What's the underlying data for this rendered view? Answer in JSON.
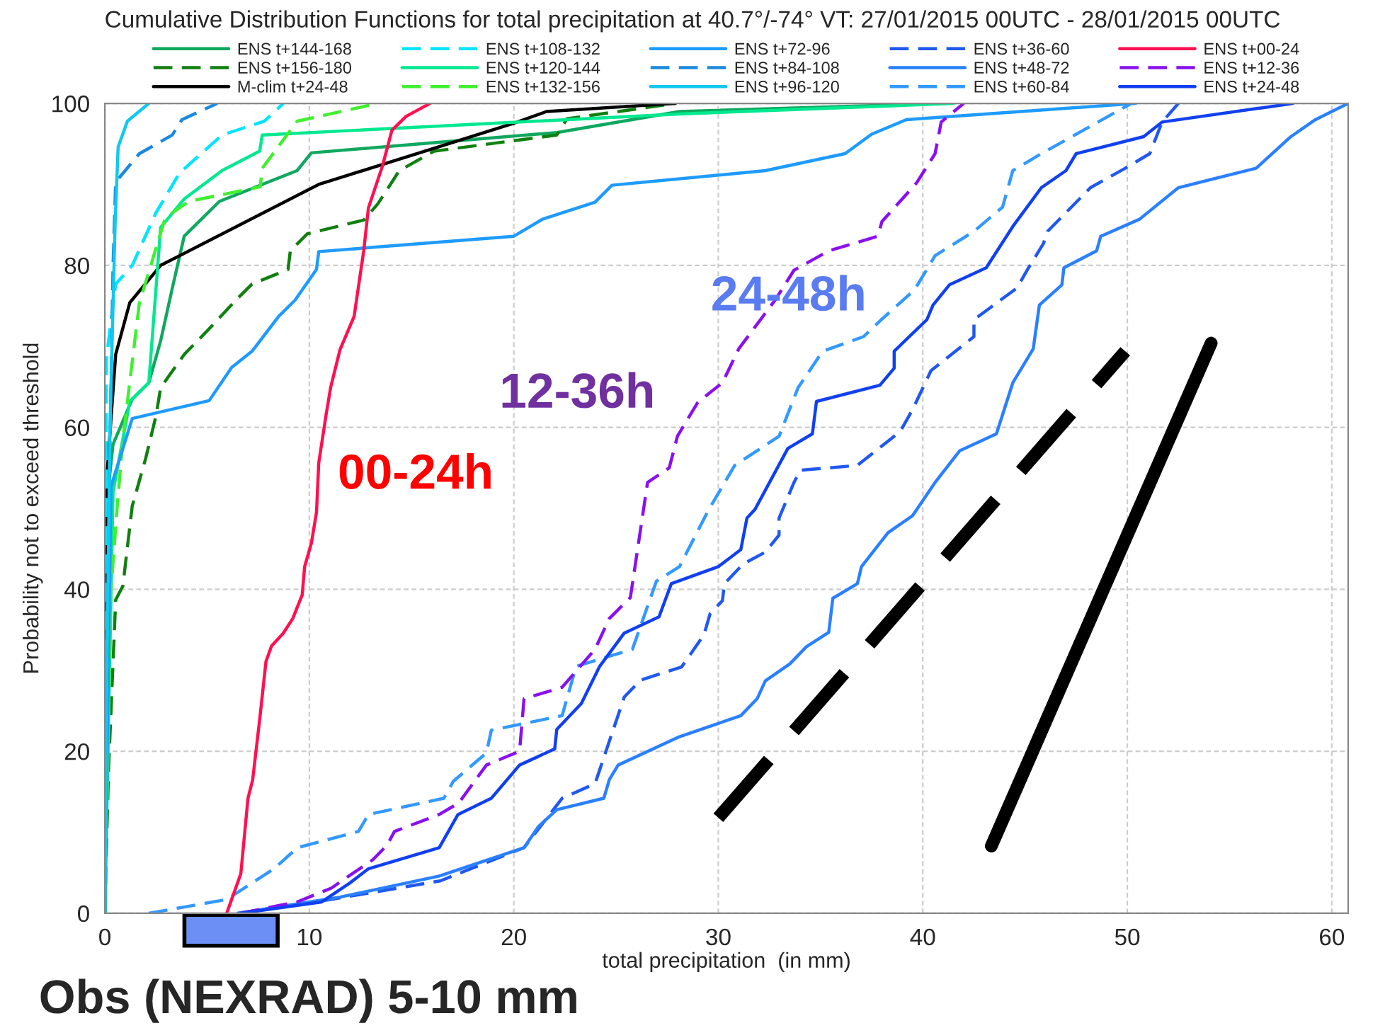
{
  "chart_data": {
    "type": "line",
    "title": "Cumulative Distribution Functions for total precipitation at 40.7°/-74° VT: 27/01/2015 00UTC - 28/01/2015 00UTC",
    "xlabel": "total precipitation  (in mm)",
    "ylabel": "Probability not to exceed threshold",
    "xlim": [
      0,
      60.8
    ],
    "ylim": [
      0,
      100
    ],
    "xticks": [
      0,
      10,
      20,
      30,
      40,
      50,
      60
    ],
    "yticks": [
      0,
      20,
      40,
      60,
      80,
      100
    ],
    "grid": true,
    "legend": "top",
    "marker": "none",
    "series": [
      {
        "name": "ENS t+144-168",
        "color": "#10a860",
        "line_style": "solid",
        "x": [
          0,
          0.07,
          0.4,
          1.34,
          2.15,
          2.73,
          3.3,
          3.88,
          5.6,
          9.4,
          10.1,
          22.1,
          28.1,
          41.0
        ],
        "values": [
          0,
          50.2,
          57.9,
          63.5,
          65.5,
          70.7,
          77.2,
          83.6,
          87.9,
          91.7,
          93.9,
          96.4,
          99,
          100
        ]
      },
      {
        "name": "ENS t+156-180",
        "color": "#108010",
        "line_style": "dashed",
        "x": [
          0,
          0.18,
          0.53,
          0.88,
          1.34,
          2.0,
          2.5,
          2.73,
          3.88,
          5.0,
          6.4,
          7.2,
          8.96,
          9.07,
          9.9,
          12.66,
          13.35,
          14.4,
          16.1,
          22.1,
          22.6,
          27.9
        ],
        "values": [
          0,
          17.7,
          38.7,
          40.4,
          50.3,
          56.2,
          61.4,
          64.9,
          69,
          71.9,
          75.7,
          77.7,
          79.5,
          81.8,
          83.9,
          85.6,
          87.6,
          91.7,
          94.1,
          96.1,
          98.1,
          100
        ]
      },
      {
        "name": "M-clim t+24-48",
        "color": "#000000",
        "line_style": "solid",
        "x": [
          0,
          0.05,
          0.1,
          0.53,
          1.22,
          2.73,
          10.46,
          20.05,
          21.6,
          27.9
        ],
        "values": [
          0,
          45,
          54,
          69,
          75.4,
          80,
          90,
          97.6,
          99,
          100
        ]
      },
      {
        "name": "ENS t+108-132",
        "color": "#00e5ff",
        "line_style": "dashed",
        "x": [
          0,
          0.05,
          0.07,
          0.53,
          1.34,
          2.5,
          3.65,
          5.73,
          7.8,
          8.73
        ],
        "values": [
          0,
          40,
          68.4,
          77.7,
          80,
          86.5,
          91.4,
          96.1,
          97.8,
          100
        ]
      },
      {
        "name": "ENS t+120-144",
        "color": "#00e890",
        "line_style": "solid",
        "x": [
          0,
          0.4,
          1.22,
          2.15,
          2.73,
          3.88,
          5.73,
          7.57,
          7.7,
          28.1,
          41.5
        ],
        "values": [
          0,
          52,
          63.2,
          65.5,
          84.7,
          88.2,
          91.7,
          94.1,
          96.1,
          98.7,
          100
        ]
      },
      {
        "name": "ENS t+132-156",
        "color": "#40f030",
        "line_style": "dashed",
        "x": [
          0,
          0.3,
          0.6,
          0.88,
          1.69,
          2.96,
          4.1,
          7.6,
          7.7,
          9.4,
          13.35
        ],
        "values": [
          0,
          40,
          50,
          58.5,
          75.4,
          85.9,
          87.9,
          89.7,
          92,
          97.8,
          100
        ]
      },
      {
        "name": "ENS t+72-96",
        "color": "#1e9bff",
        "line_style": "solid",
        "x": [
          0,
          0.3,
          1.34,
          5.1,
          6.2,
          7.2,
          8.5,
          9.3,
          10.35,
          10.46,
          20.0,
          21.4,
          23.97,
          24.8,
          32.3,
          36.2,
          37.5,
          39.2,
          50.4
        ],
        "values": [
          0,
          52.7,
          61.1,
          63.3,
          67.4,
          69.4,
          73.7,
          75.7,
          79.5,
          81.7,
          83.6,
          85.7,
          87.8,
          89.9,
          91.7,
          93.8,
          96.2,
          98,
          100
        ]
      },
      {
        "name": "ENS t+84-108",
        "color": "#1a8ae0",
        "line_style": "dashed",
        "x": [
          0,
          0.2,
          0.4,
          0.53,
          1.69,
          3.3,
          3.77,
          5.5
        ],
        "values": [
          0,
          50,
          80,
          90.3,
          93.8,
          96.1,
          98,
          100
        ]
      },
      {
        "name": "ENS t+96-120",
        "color": "#10c8f0",
        "line_style": "solid",
        "x": [
          0,
          0.1,
          0.25,
          0.5,
          0.65,
          1.1,
          2.15
        ],
        "values": [
          0,
          30,
          60,
          85,
          94.6,
          97.8,
          100
        ]
      },
      {
        "name": "ENS t+36-60",
        "color": "#2058f0",
        "line_style": "dashed",
        "x": [
          6.5,
          11.04,
          16.4,
          20.5,
          22.36,
          23.97,
          25.4,
          26.2,
          28.2,
          29.3,
          29.6,
          30.2,
          30.3,
          31.2,
          32.3,
          32.97,
          32.97,
          33.7,
          34.0,
          36.8,
          38.9,
          39.5,
          40.4,
          42.5,
          42.5,
          44.6,
          45.1,
          45.9,
          46.1,
          48.2,
          49.9,
          51.1,
          51.7,
          52.5
        ],
        "values": [
          0,
          1.7,
          4.0,
          8.1,
          14.2,
          16,
          26.7,
          28.8,
          30.4,
          34.4,
          37,
          38.6,
          40.7,
          43.1,
          44.6,
          46.7,
          48.8,
          53.2,
          54.7,
          55.3,
          59.5,
          62.2,
          67,
          71.2,
          73.3,
          77.2,
          79.4,
          82.7,
          84.2,
          89.6,
          92,
          93.8,
          97.7,
          100
        ]
      },
      {
        "name": "ENS t+48-72",
        "color": "#2a80ff",
        "line_style": "solid",
        "x": [
          6.5,
          11.5,
          16.35,
          20.5,
          21.2,
          22.1,
          24.4,
          24.67,
          25.1,
          28.1,
          31.1,
          31.9,
          32.3,
          33.5,
          34.3,
          35.4,
          35.6,
          36.8,
          37.0,
          38.3,
          39.5,
          40.6,
          41.8,
          43.6,
          44.4,
          45.4,
          45.7,
          46.8,
          46.9,
          48.5,
          48.7,
          50.6,
          52.5,
          56.3,
          58.0,
          59.2,
          60.8
        ],
        "values": [
          0,
          2.0,
          4.6,
          8.1,
          10.7,
          12.8,
          14.2,
          16.5,
          18.3,
          21.8,
          24.4,
          26.5,
          28.7,
          30.8,
          32.9,
          34.7,
          38.9,
          40.7,
          42.8,
          47,
          49.1,
          53.2,
          57.1,
          59.2,
          65.5,
          69.7,
          75.1,
          77.6,
          79.7,
          81.8,
          83.6,
          85.7,
          89.6,
          92,
          95.9,
          98,
          100
        ]
      },
      {
        "name": "ENS t+60-84",
        "color": "#3399ff",
        "line_style": "dashed",
        "x": [
          2.15,
          5.96,
          8.27,
          9.42,
          12.4,
          12.89,
          16.58,
          17.04,
          18.66,
          18.9,
          22.36,
          23.05,
          25.8,
          26.97,
          28.1,
          29.5,
          30.8,
          32.97,
          33.9,
          35.1,
          37.1,
          37.97,
          39.6,
          40.6,
          42.5,
          43.9,
          44.4,
          45.8,
          50.2
        ],
        "values": [
          0,
          1.7,
          5.5,
          8.1,
          10.1,
          12.2,
          14.2,
          16.3,
          19.8,
          22.6,
          24.4,
          30.5,
          32.6,
          41,
          42.8,
          49.7,
          55.3,
          58.9,
          64.9,
          69.4,
          71.2,
          73.3,
          77,
          81.2,
          84.2,
          87.2,
          91.7,
          93.8,
          100
        ]
      },
      {
        "name": "ENS t+00-24",
        "color": "#ff1050",
        "line_style": "solid",
        "x": [
          5.96,
          6.65,
          7.0,
          7.23,
          7.58,
          7.88,
          8.15,
          8.73,
          9.19,
          9.65,
          9.77,
          10.1,
          10.35,
          10.46,
          10.81,
          11.04,
          11.5,
          12.19,
          12.66,
          12.89,
          13.58,
          14.04,
          14.73,
          15.9
        ],
        "values": [
          0,
          4.9,
          14.2,
          16.5,
          24.1,
          31.1,
          33,
          34.6,
          36.4,
          39.3,
          42.8,
          45.7,
          49.5,
          55.6,
          61.4,
          64.9,
          69.6,
          73.7,
          81.8,
          87.1,
          92.3,
          96.7,
          98.4,
          100
        ]
      },
      {
        "name": "ENS t+12-36",
        "color": "#8a10f0",
        "line_style": "dashed",
        "x": [
          6.65,
          9.4,
          11.07,
          11.76,
          13.1,
          13.8,
          14.16,
          16.35,
          17.3,
          18.66,
          20.28,
          20.5,
          22.36,
          23.97,
          24.67,
          25.7,
          26.54,
          27.6,
          28.0,
          29.0,
          30.2,
          31.0,
          32.8,
          33.7,
          35.4,
          37.8,
          38.0,
          39.7,
          40.6,
          40.9,
          42.0
        ],
        "values": [
          0,
          1.4,
          3.1,
          4.3,
          6.6,
          8.4,
          10.1,
          12.2,
          13.6,
          18.3,
          20,
          26.5,
          27.9,
          32.6,
          36.4,
          39,
          53.2,
          55,
          58.9,
          63.1,
          65.5,
          69.7,
          75.8,
          79.4,
          81.8,
          83.6,
          85.4,
          90.2,
          93.8,
          97.7,
          100
        ]
      },
      {
        "name": "ENS t+24-48",
        "color": "#1040f0",
        "line_style": "solid",
        "x": [
          6.65,
          10.6,
          11.96,
          12.89,
          16.35,
          17.27,
          18.9,
          20.28,
          22.0,
          22.1,
          23.3,
          24.2,
          25.4,
          27.1,
          27.7,
          30.0,
          31.1,
          31.4,
          31.8,
          33.4,
          34.6,
          34.8,
          37.9,
          38.6,
          38.6,
          40.2,
          40.5,
          41.3,
          43.1,
          44.4,
          45.8,
          47.0,
          47.5,
          50.8,
          51.7,
          58.1
        ],
        "values": [
          0,
          1.4,
          3.7,
          5.5,
          8.1,
          12.2,
          14.2,
          18.3,
          20.3,
          22.7,
          25.9,
          30.5,
          34.6,
          36.6,
          40.7,
          42.8,
          44.9,
          48.8,
          49.9,
          57.4,
          59.2,
          63.2,
          65.2,
          67.3,
          69.4,
          73.3,
          75.1,
          77.6,
          79.7,
          84.8,
          89.6,
          91.7,
          93.8,
          95.9,
          97.7,
          100
        ]
      },
      {
        "color": "#000000",
        "line_style": "dashed",
        "x": [
          30.0,
          49.9
        ],
        "values": [
          11.8,
          69.4
        ]
      },
      {
        "color": "#000000",
        "line_style": "solid",
        "x": [
          43.35,
          54.1
        ],
        "values": [
          8.3,
          70.4
        ]
      }
    ],
    "annotations": [
      "00-24h",
      "12-36h",
      "24-48h",
      "Obs (NEXRAD) 5-10 mm"
    ]
  }
}
